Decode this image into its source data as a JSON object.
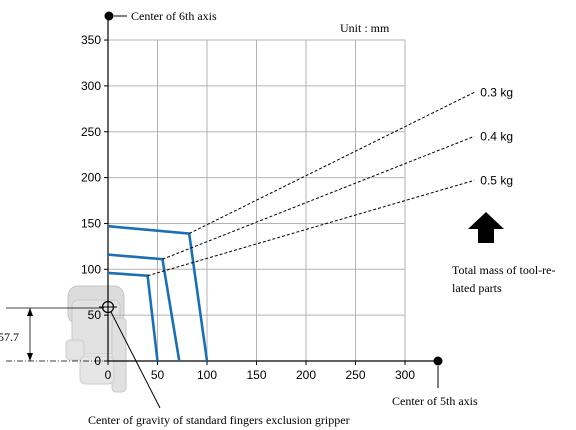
{
  "annotations": {
    "center_6th": "Center of 6th axis",
    "center_5th": "Center of 5th axis",
    "unit": "Unit : mm",
    "total_mass_line1": "Total mass of tool-re-",
    "total_mass_line2": "lated parts",
    "cog_label": "Center of gravity of standard fingers exclusion gripper",
    "dim_value": "57.7"
  },
  "colors": {
    "envelope": "#1a6fb5",
    "grid": "#b3b3b3",
    "axis": "#000000",
    "gripper_body": "#d9d9d9"
  },
  "chart_data": {
    "type": "line",
    "xlim": [
      0,
      300
    ],
    "ylim": [
      0,
      350
    ],
    "x_ticks": [
      0,
      50,
      100,
      150,
      200,
      250,
      300
    ],
    "y_ticks": [
      0,
      50,
      100,
      150,
      200,
      250,
      300,
      350
    ],
    "grid": true,
    "cog_point": [
      0,
      57.7
    ],
    "series": [
      {
        "name": "0.3 kg",
        "envelope": [
          [
            0,
            147
          ],
          [
            82,
            139
          ],
          [
            100,
            0
          ]
        ],
        "dashed_to": [
          370,
          293
        ]
      },
      {
        "name": "0.4 kg",
        "envelope": [
          [
            0,
            116
          ],
          [
            55,
            111
          ],
          [
            72,
            0
          ]
        ],
        "dashed_to": [
          370,
          245
        ]
      },
      {
        "name": "0.5 kg",
        "envelope": [
          [
            0,
            96
          ],
          [
            40,
            93
          ],
          [
            50,
            0
          ]
        ],
        "dashed_to": [
          370,
          197
        ]
      }
    ]
  }
}
